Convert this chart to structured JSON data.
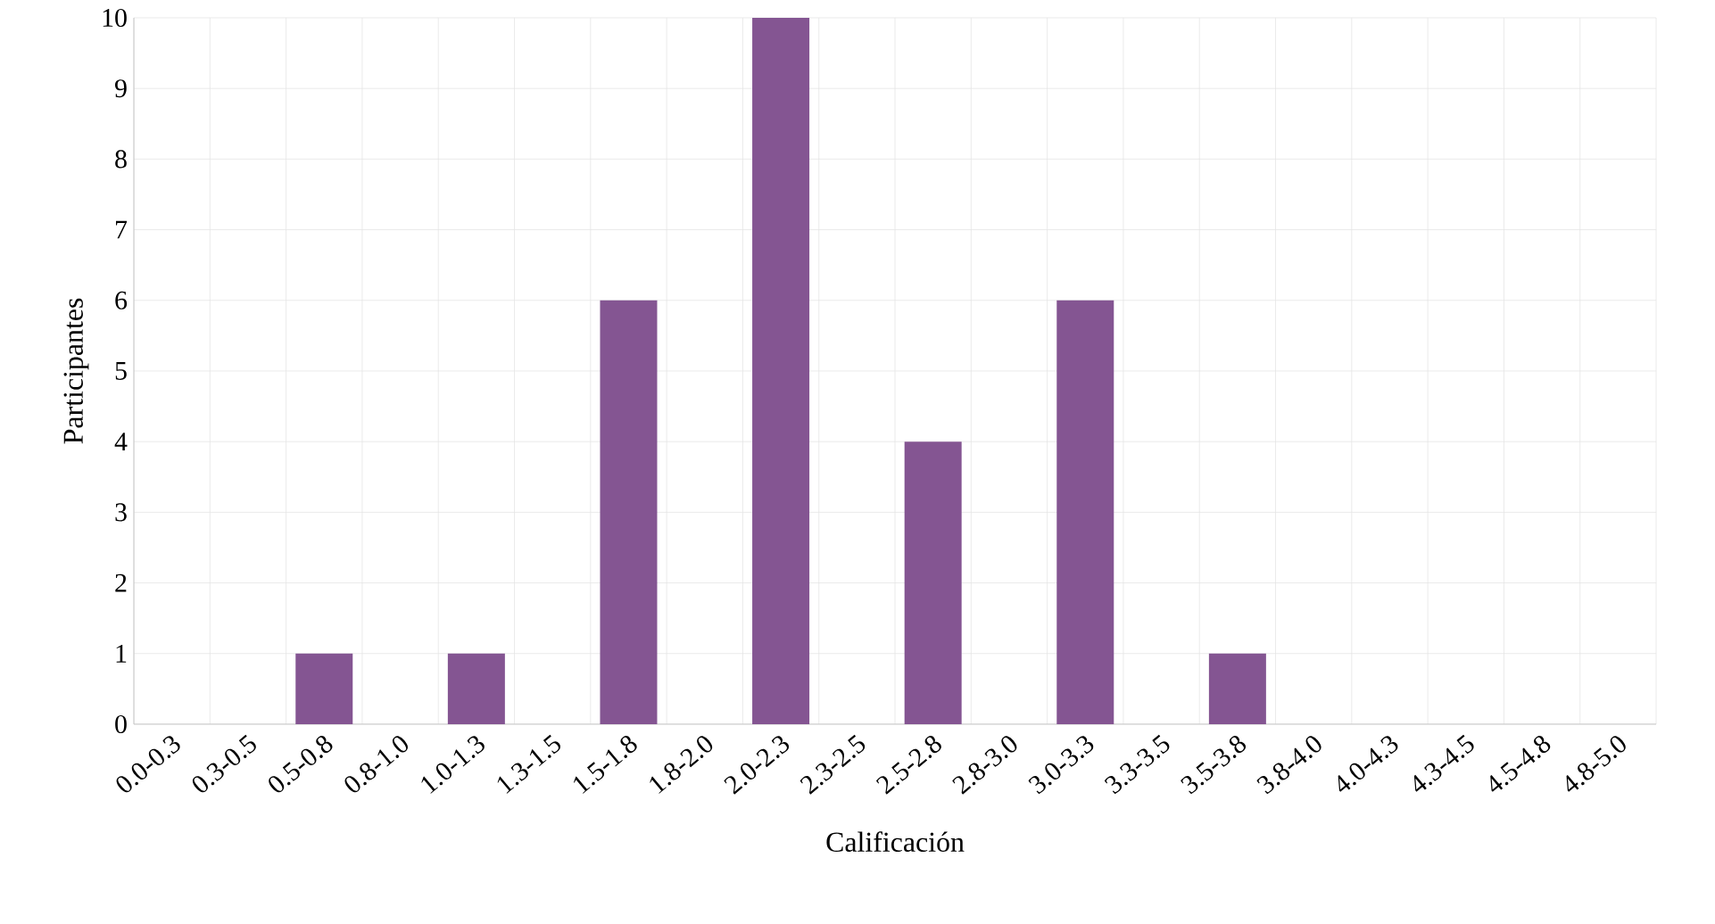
{
  "chart_data": {
    "type": "bar",
    "xlabel": "Calificación",
    "ylabel": "Participantes",
    "categories": [
      "0.0-0.3",
      "0.3-0.5",
      "0.5-0.8",
      "0.8-1.0",
      "1.0-1.3",
      "1.3-1.5",
      "1.5-1.8",
      "1.8-2.0",
      "2.0-2.3",
      "2.3-2.5",
      "2.5-2.8",
      "2.8-3.0",
      "3.0-3.3",
      "3.3-3.5",
      "3.5-3.8",
      "3.8-4.0",
      "4.0-4.3",
      "4.3-4.5",
      "4.5-4.8",
      "4.8-5.0"
    ],
    "values": [
      0,
      0,
      1,
      0,
      1,
      0,
      6,
      0,
      10,
      0,
      4,
      0,
      6,
      0,
      1,
      0,
      0,
      0,
      0,
      0
    ],
    "color": "#845592",
    "ylim": [
      0,
      10
    ],
    "yticks": [
      0,
      1,
      2,
      3,
      4,
      5,
      6,
      7,
      8,
      9,
      10
    ],
    "grid": true
  }
}
